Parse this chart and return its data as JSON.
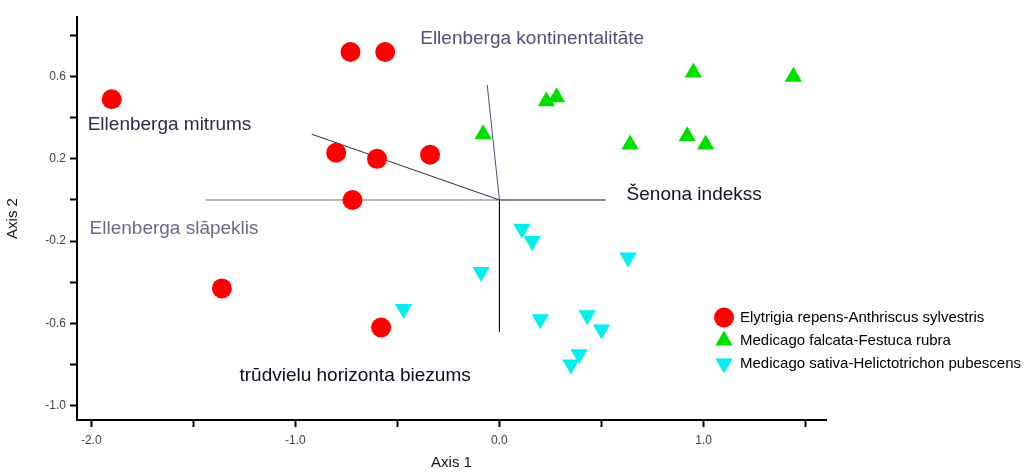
{
  "chart_data": {
    "type": "scatter",
    "xlabel": "Axis 1",
    "ylabel": "Axis 2",
    "xlim": [
      -2.07,
      1.6
    ],
    "ylim": [
      -1.07,
      0.89
    ],
    "xticks": [
      {
        "value": -2,
        "label": "-2.0"
      },
      {
        "value": -1.5,
        "label": null
      },
      {
        "value": -1,
        "label": "-1.0"
      },
      {
        "value": -0.5,
        "label": null
      },
      {
        "value": 0,
        "label": "0.0"
      },
      {
        "value": 0.5,
        "label": null
      },
      {
        "value": 1,
        "label": "1.0"
      },
      {
        "value": 1.5,
        "label": null
      }
    ],
    "yticks": [
      {
        "value": 0.8,
        "label": null
      },
      0.6,
      {
        "value": 0.4,
        "label": null
      },
      0.2,
      {
        "value": 0,
        "label": null
      },
      -0.2,
      {
        "value": -0.4,
        "label": null
      },
      -0.6,
      {
        "value": -0.8,
        "label": null
      },
      {
        "value": -1,
        "label": "-1.0"
      }
    ],
    "grid": false,
    "legend": "bottom right",
    "series": [
      {
        "name": "Elytrigia repens-Anthriscus sylvestris",
        "color": "#ff0000",
        "marker": "circle",
        "x": [
          -1.9,
          -0.73,
          -0.56,
          -0.8,
          -0.6,
          -0.34,
          -0.72,
          -1.36,
          -0.58
        ],
        "values": [
          0.49,
          0.72,
          0.72,
          0.23,
          0.2,
          0.22,
          0.0,
          -0.43,
          -0.62
        ]
      },
      {
        "name": "Medicago falcata-Festuca rubra",
        "color": "#00e000",
        "marker": "triangle",
        "x": [
          -0.08,
          0.23,
          0.28,
          0.95,
          1.44,
          0.64,
          0.92,
          1.01
        ],
        "values": [
          0.32,
          0.48,
          0.5,
          0.62,
          0.6,
          0.27,
          0.31,
          0.27
        ]
      },
      {
        "name": "Medicago sativa-Helictotrichon pubescens",
        "color": "#00f0f0",
        "marker": "triangle-down",
        "x": [
          0.11,
          0.16,
          -0.09,
          0.63,
          -0.47,
          0.2,
          0.43,
          0.5,
          0.39,
          0.35
        ],
        "values": [
          -0.14,
          -0.2,
          -0.35,
          -0.28,
          -0.53,
          -0.58,
          -0.56,
          -0.63,
          -0.75,
          -0.8
        ]
      },
      {
        "name": "Ellenberga kontinentalitāte",
        "type": "line",
        "color": "#50507a",
        "marker": "none",
        "x": [
          0,
          -0.06
        ],
        "values": [
          0,
          0.56
        ]
      },
      {
        "name": "Ellenberga mitrums",
        "type": "line",
        "color": "#2b2b50",
        "marker": "none",
        "x": [
          0,
          -0.92
        ],
        "values": [
          0,
          0.32
        ]
      },
      {
        "name": "Ellenberga slāpeklis",
        "type": "line",
        "color": "#6a6a8a",
        "marker": "none",
        "x": [
          0,
          -1.44
        ],
        "values": [
          0,
          0.0
        ]
      },
      {
        "name": "Šenona indekss",
        "type": "line",
        "color": "#101028",
        "marker": "none",
        "x": [
          0,
          0.52
        ],
        "values": [
          0,
          0.0
        ]
      },
      {
        "name": "trūdvielu horizonta biezums",
        "type": "line",
        "color": "#0a0a20",
        "marker": "none",
        "x": [
          0,
          0.0
        ],
        "values": [
          0,
          -0.64
        ]
      }
    ]
  }
}
